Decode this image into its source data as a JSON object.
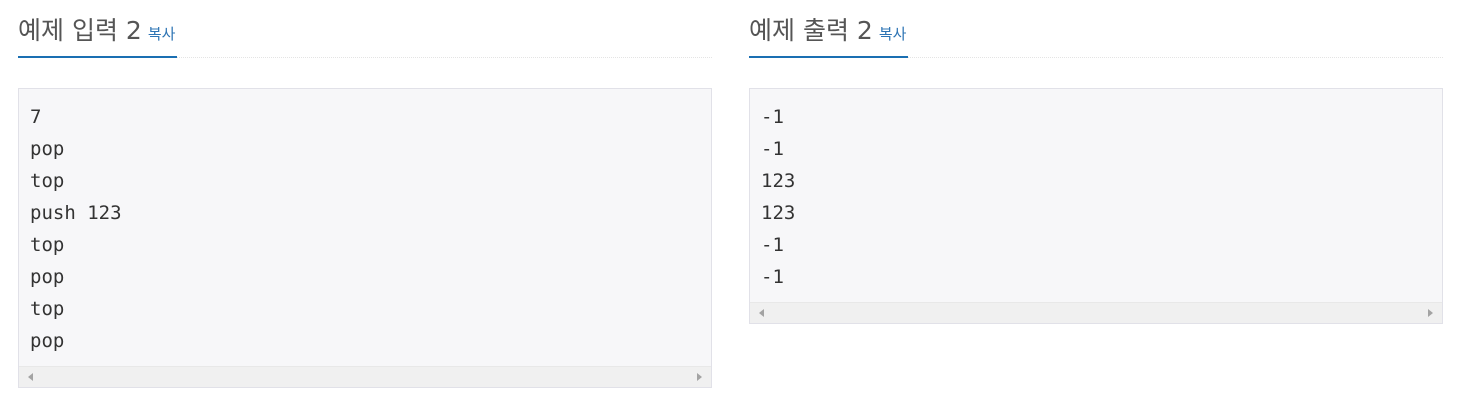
{
  "input_section": {
    "title": "예제 입력 2",
    "copy_label": "복사",
    "lines": [
      "7",
      "pop",
      "top",
      "push 123",
      "top",
      "pop",
      "top",
      "pop"
    ]
  },
  "output_section": {
    "title": "예제 출력 2",
    "copy_label": "복사",
    "lines": [
      "-1",
      "-1",
      "123",
      "123",
      "-1",
      "-1"
    ]
  },
  "colors": {
    "accent": "#1a6fb2",
    "copy_link": "#2d74b4",
    "title_text": "#555555",
    "code_bg": "#f7f7f9"
  }
}
